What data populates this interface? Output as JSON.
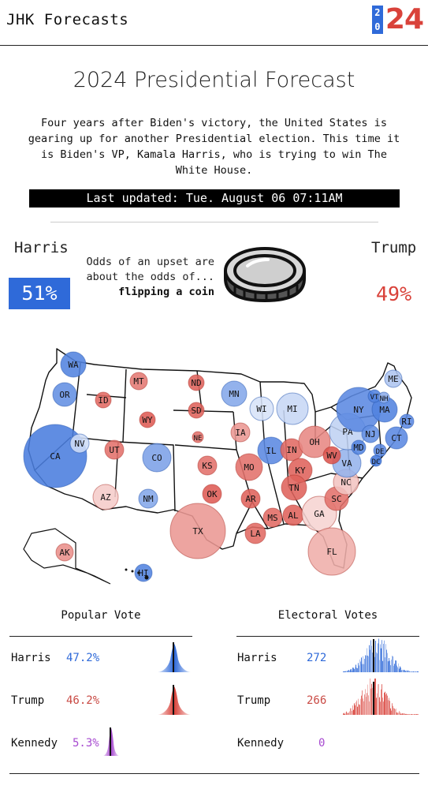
{
  "header": {
    "brand": "JHK Forecasts",
    "logo_small_top": "2",
    "logo_small_bottom": "0",
    "logo_big": "24"
  },
  "title": "2024 Presidential Forecast",
  "intro": "Four years after Biden's victory, the United States is gearing up for another Presidential election. This time it is Biden's VP, Kamala Harris, who is trying to win The White House.",
  "last_updated": "Last updated: Tue. August 06 07:11AM",
  "odds": {
    "harris_name": "Harris",
    "harris_pct": "51%",
    "trump_name": "Trump",
    "trump_pct": "49%",
    "line1": "Odds of an upset are",
    "line2": "about the odds of...",
    "line3": "flipping a coin",
    "icon": "coin-icon"
  },
  "colors": {
    "dem": "#2f6ad9",
    "rep": "#d9423a",
    "ind": "#a74ad0"
  },
  "map": {
    "states": [
      {
        "abbr": "WA",
        "lean": 0.85
      },
      {
        "abbr": "OR",
        "lean": 0.75
      },
      {
        "abbr": "CA",
        "lean": 0.9
      },
      {
        "abbr": "NV",
        "lean": 0.1
      },
      {
        "abbr": "ID",
        "lean": -0.8
      },
      {
        "abbr": "MT",
        "lean": -0.7
      },
      {
        "abbr": "WY",
        "lean": -0.9
      },
      {
        "abbr": "UT",
        "lean": -0.75
      },
      {
        "abbr": "AZ",
        "lean": -0.15
      },
      {
        "abbr": "CO",
        "lean": 0.6
      },
      {
        "abbr": "NM",
        "lean": 0.55
      },
      {
        "abbr": "ND",
        "lean": -0.85
      },
      {
        "abbr": "SD",
        "lean": -0.85
      },
      {
        "abbr": "NE",
        "lean": -0.75
      },
      {
        "abbr": "KS",
        "lean": -0.75
      },
      {
        "abbr": "OK",
        "lean": -0.9
      },
      {
        "abbr": "TX",
        "lean": -0.5
      },
      {
        "abbr": "MN",
        "lean": 0.55
      },
      {
        "abbr": "IA",
        "lean": -0.5
      },
      {
        "abbr": "MO",
        "lean": -0.75
      },
      {
        "abbr": "AR",
        "lean": -0.85
      },
      {
        "abbr": "LA",
        "lean": -0.8
      },
      {
        "abbr": "WI",
        "lean": 0.05
      },
      {
        "abbr": "IL",
        "lean": 0.8
      },
      {
        "abbr": "MI",
        "lean": 0.15
      },
      {
        "abbr": "IN",
        "lean": -0.8
      },
      {
        "abbr": "OH",
        "lean": -0.6
      },
      {
        "abbr": "KY",
        "lean": -0.85
      },
      {
        "abbr": "TN",
        "lean": -0.85
      },
      {
        "abbr": "MS",
        "lean": -0.8
      },
      {
        "abbr": "AL",
        "lean": -0.85
      },
      {
        "abbr": "GA",
        "lean": -0.1
      },
      {
        "abbr": "FL",
        "lean": -0.35
      },
      {
        "abbr": "SC",
        "lean": -0.75
      },
      {
        "abbr": "NC",
        "lean": -0.2
      },
      {
        "abbr": "VA",
        "lean": 0.45
      },
      {
        "abbr": "WV",
        "lean": -0.95
      },
      {
        "abbr": "PA",
        "lean": 0.2
      },
      {
        "abbr": "NY",
        "lean": 0.8
      },
      {
        "abbr": "NJ",
        "lean": 0.75
      },
      {
        "abbr": "DE",
        "lean": 0.8
      },
      {
        "abbr": "MD",
        "lean": 0.85
      },
      {
        "abbr": "DC",
        "lean": 0.95
      },
      {
        "abbr": "CT",
        "lean": 0.8
      },
      {
        "abbr": "RI",
        "lean": 0.8
      },
      {
        "abbr": "MA",
        "lean": 0.85
      },
      {
        "abbr": "VT",
        "lean": 0.85
      },
      {
        "abbr": "NH",
        "lean": 0.5
      },
      {
        "abbr": "ME",
        "lean": 0.3
      },
      {
        "abbr": "AK",
        "lean": -0.55
      },
      {
        "abbr": "HI",
        "lean": 0.85
      }
    ]
  },
  "popular_vote": {
    "title": "Popular Vote",
    "rows": [
      {
        "name": "Harris",
        "value": "47.2%",
        "icon": "distribution-icon"
      },
      {
        "name": "Trump",
        "value": "46.2%",
        "icon": "distribution-icon"
      },
      {
        "name": "Kennedy",
        "value": "5.3%",
        "icon": "distribution-icon"
      }
    ]
  },
  "electoral_votes": {
    "title": "Electoral Votes",
    "rows": [
      {
        "name": "Harris",
        "value": "272",
        "icon": "histogram-icon"
      },
      {
        "name": "Trump",
        "value": "266",
        "icon": "histogram-icon"
      },
      {
        "name": "Kennedy",
        "value": "0"
      }
    ]
  }
}
